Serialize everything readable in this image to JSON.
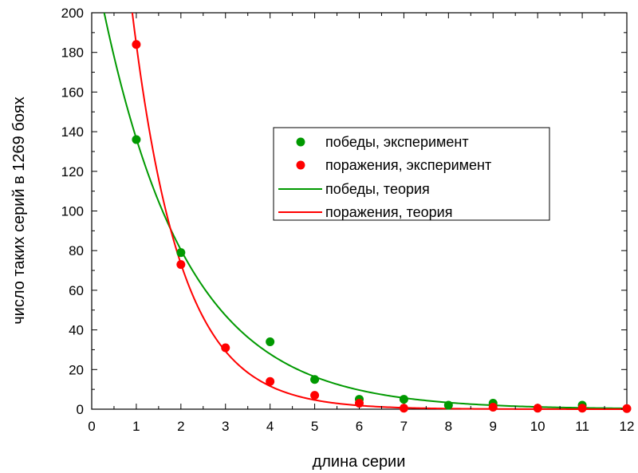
{
  "chart_data": {
    "type": "scatter",
    "xlabel": "длина серии",
    "ylabel": "число таких серий в 1269 боях",
    "xlim": [
      0,
      12
    ],
    "ylim": [
      0,
      200
    ],
    "xticks": [
      0,
      1,
      2,
      3,
      4,
      5,
      6,
      7,
      8,
      9,
      10,
      11,
      12
    ],
    "yticks": [
      0,
      20,
      40,
      60,
      80,
      100,
      120,
      140,
      160,
      180,
      200
    ],
    "grid": false,
    "legend_position": "center-right",
    "series": [
      {
        "name": "победы, эксперимент",
        "kind": "points",
        "color": "#009900",
        "x": [
          1,
          2,
          4,
          5,
          6,
          7,
          8,
          9,
          11
        ],
        "y": [
          136,
          79,
          34,
          15,
          5,
          5,
          2,
          3,
          2
        ]
      },
      {
        "name": "поражения, эксперимент",
        "kind": "points",
        "color": "#ff0000",
        "x": [
          1,
          2,
          3,
          4,
          5,
          6,
          7,
          9,
          10,
          11,
          12
        ],
        "y": [
          184,
          73,
          31,
          14,
          7,
          3,
          0.5,
          1,
          0.5,
          0.5,
          0.3
        ]
      },
      {
        "name": "победы, теория",
        "kind": "line",
        "color": "#009900",
        "model": {
          "a": 232,
          "k": 0.53
        }
      },
      {
        "name": "поражения, теория",
        "kind": "line",
        "color": "#ff0000",
        "model": {
          "a": 462,
          "k": 0.92
        }
      }
    ]
  }
}
